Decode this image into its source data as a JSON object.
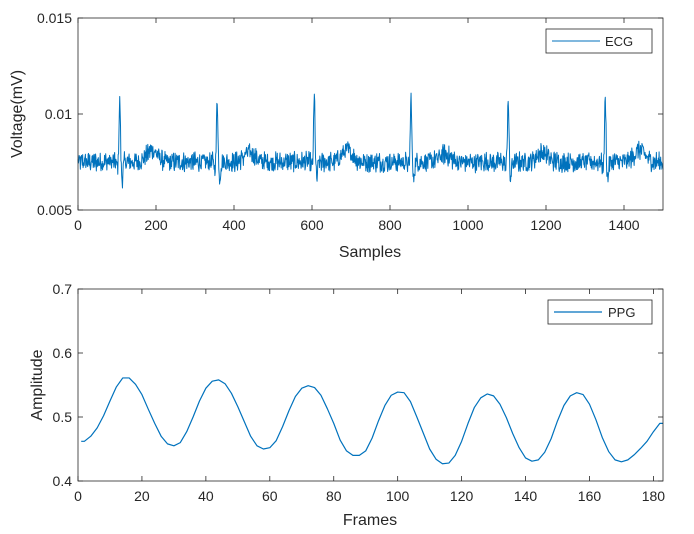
{
  "colors": {
    "line": "#0072BD",
    "axis": "#262626",
    "background": "#ffffff"
  },
  "chart_data": [
    {
      "type": "line",
      "series": [
        {
          "name": "ECG"
        }
      ],
      "xlabel": "Samples",
      "ylabel": "Voltage(mV)",
      "xlim": [
        0,
        1500
      ],
      "ylim": [
        0.005,
        0.015
      ],
      "xticks": [
        0,
        200,
        400,
        600,
        800,
        1000,
        1200,
        1400
      ],
      "xtick_labels": [
        "0",
        "200",
        "400",
        "600",
        "800",
        "1000",
        "1200",
        "1400"
      ],
      "yticks": [
        0.005,
        0.01,
        0.015
      ],
      "ytick_labels": [
        "0.005",
        "0.01",
        "0.015"
      ],
      "legend_position": "top-right",
      "baseline_mV": 0.0075,
      "r_peaks": [
        {
          "x": 107,
          "y": 0.0107
        },
        {
          "x": 357,
          "y": 0.0108
        },
        {
          "x": 606,
          "y": 0.0109
        },
        {
          "x": 854,
          "y": 0.0109
        },
        {
          "x": 1103,
          "y": 0.0109
        },
        {
          "x": 1352,
          "y": 0.0108
        }
      ],
      "s_trough_mV": 0.0066,
      "t_waves": [
        {
          "x": 190,
          "y": 0.0081
        },
        {
          "x": 440,
          "y": 0.008
        },
        {
          "x": 690,
          "y": 0.0081
        },
        {
          "x": 940,
          "y": 0.0079
        },
        {
          "x": 1190,
          "y": 0.008
        },
        {
          "x": 1440,
          "y": 0.0081
        }
      ]
    },
    {
      "type": "line",
      "series": [
        {
          "name": "PPG",
          "x": [
            1,
            2,
            4,
            6,
            8,
            10,
            12,
            14,
            16,
            18,
            20,
            22,
            24,
            26,
            28,
            30,
            32,
            34,
            36,
            38,
            40,
            42,
            44,
            46,
            48,
            50,
            52,
            54,
            56,
            58,
            60,
            62,
            64,
            66,
            68,
            70,
            72,
            74,
            76,
            78,
            80,
            82,
            84,
            86,
            88,
            90,
            92,
            94,
            96,
            98,
            100,
            102,
            104,
            106,
            108,
            110,
            112,
            114,
            116,
            118,
            120,
            122,
            124,
            126,
            128,
            130,
            132,
            134,
            136,
            138,
            140,
            142,
            144,
            146,
            148,
            150,
            152,
            154,
            156,
            158,
            160,
            162,
            164,
            166,
            168,
            170,
            172,
            174,
            176,
            178,
            180,
            182,
            183
          ],
          "values": [
            0.462,
            0.462,
            0.47,
            0.483,
            0.502,
            0.525,
            0.547,
            0.561,
            0.561,
            0.551,
            0.535,
            0.512,
            0.49,
            0.47,
            0.458,
            0.455,
            0.46,
            0.477,
            0.5,
            0.525,
            0.545,
            0.556,
            0.558,
            0.552,
            0.537,
            0.516,
            0.493,
            0.47,
            0.455,
            0.45,
            0.452,
            0.463,
            0.485,
            0.51,
            0.532,
            0.545,
            0.549,
            0.546,
            0.534,
            0.513,
            0.49,
            0.464,
            0.447,
            0.44,
            0.44,
            0.447,
            0.467,
            0.494,
            0.518,
            0.534,
            0.539,
            0.538,
            0.524,
            0.5,
            0.475,
            0.45,
            0.434,
            0.427,
            0.428,
            0.44,
            0.462,
            0.49,
            0.515,
            0.53,
            0.536,
            0.533,
            0.52,
            0.499,
            0.474,
            0.452,
            0.436,
            0.431,
            0.433,
            0.445,
            0.466,
            0.494,
            0.518,
            0.533,
            0.538,
            0.535,
            0.52,
            0.496,
            0.468,
            0.446,
            0.433,
            0.43,
            0.433,
            0.441,
            0.451,
            0.462,
            0.477,
            0.49,
            0.49
          ]
        }
      ],
      "xlabel": "Frames",
      "ylabel": "Amplitude",
      "xlim": [
        0,
        183
      ],
      "ylim": [
        0.4,
        0.7
      ],
      "xticks": [
        0,
        20,
        40,
        60,
        80,
        100,
        120,
        140,
        160,
        180
      ],
      "xtick_labels": [
        "0",
        "20",
        "40",
        "60",
        "80",
        "100",
        "120",
        "140",
        "160",
        "180"
      ],
      "yticks": [
        0.4,
        0.5,
        0.6,
        0.7
      ],
      "ytick_labels": [
        "0.4",
        "0.5",
        "0.6",
        "0.7"
      ],
      "legend_position": "top-right"
    }
  ]
}
